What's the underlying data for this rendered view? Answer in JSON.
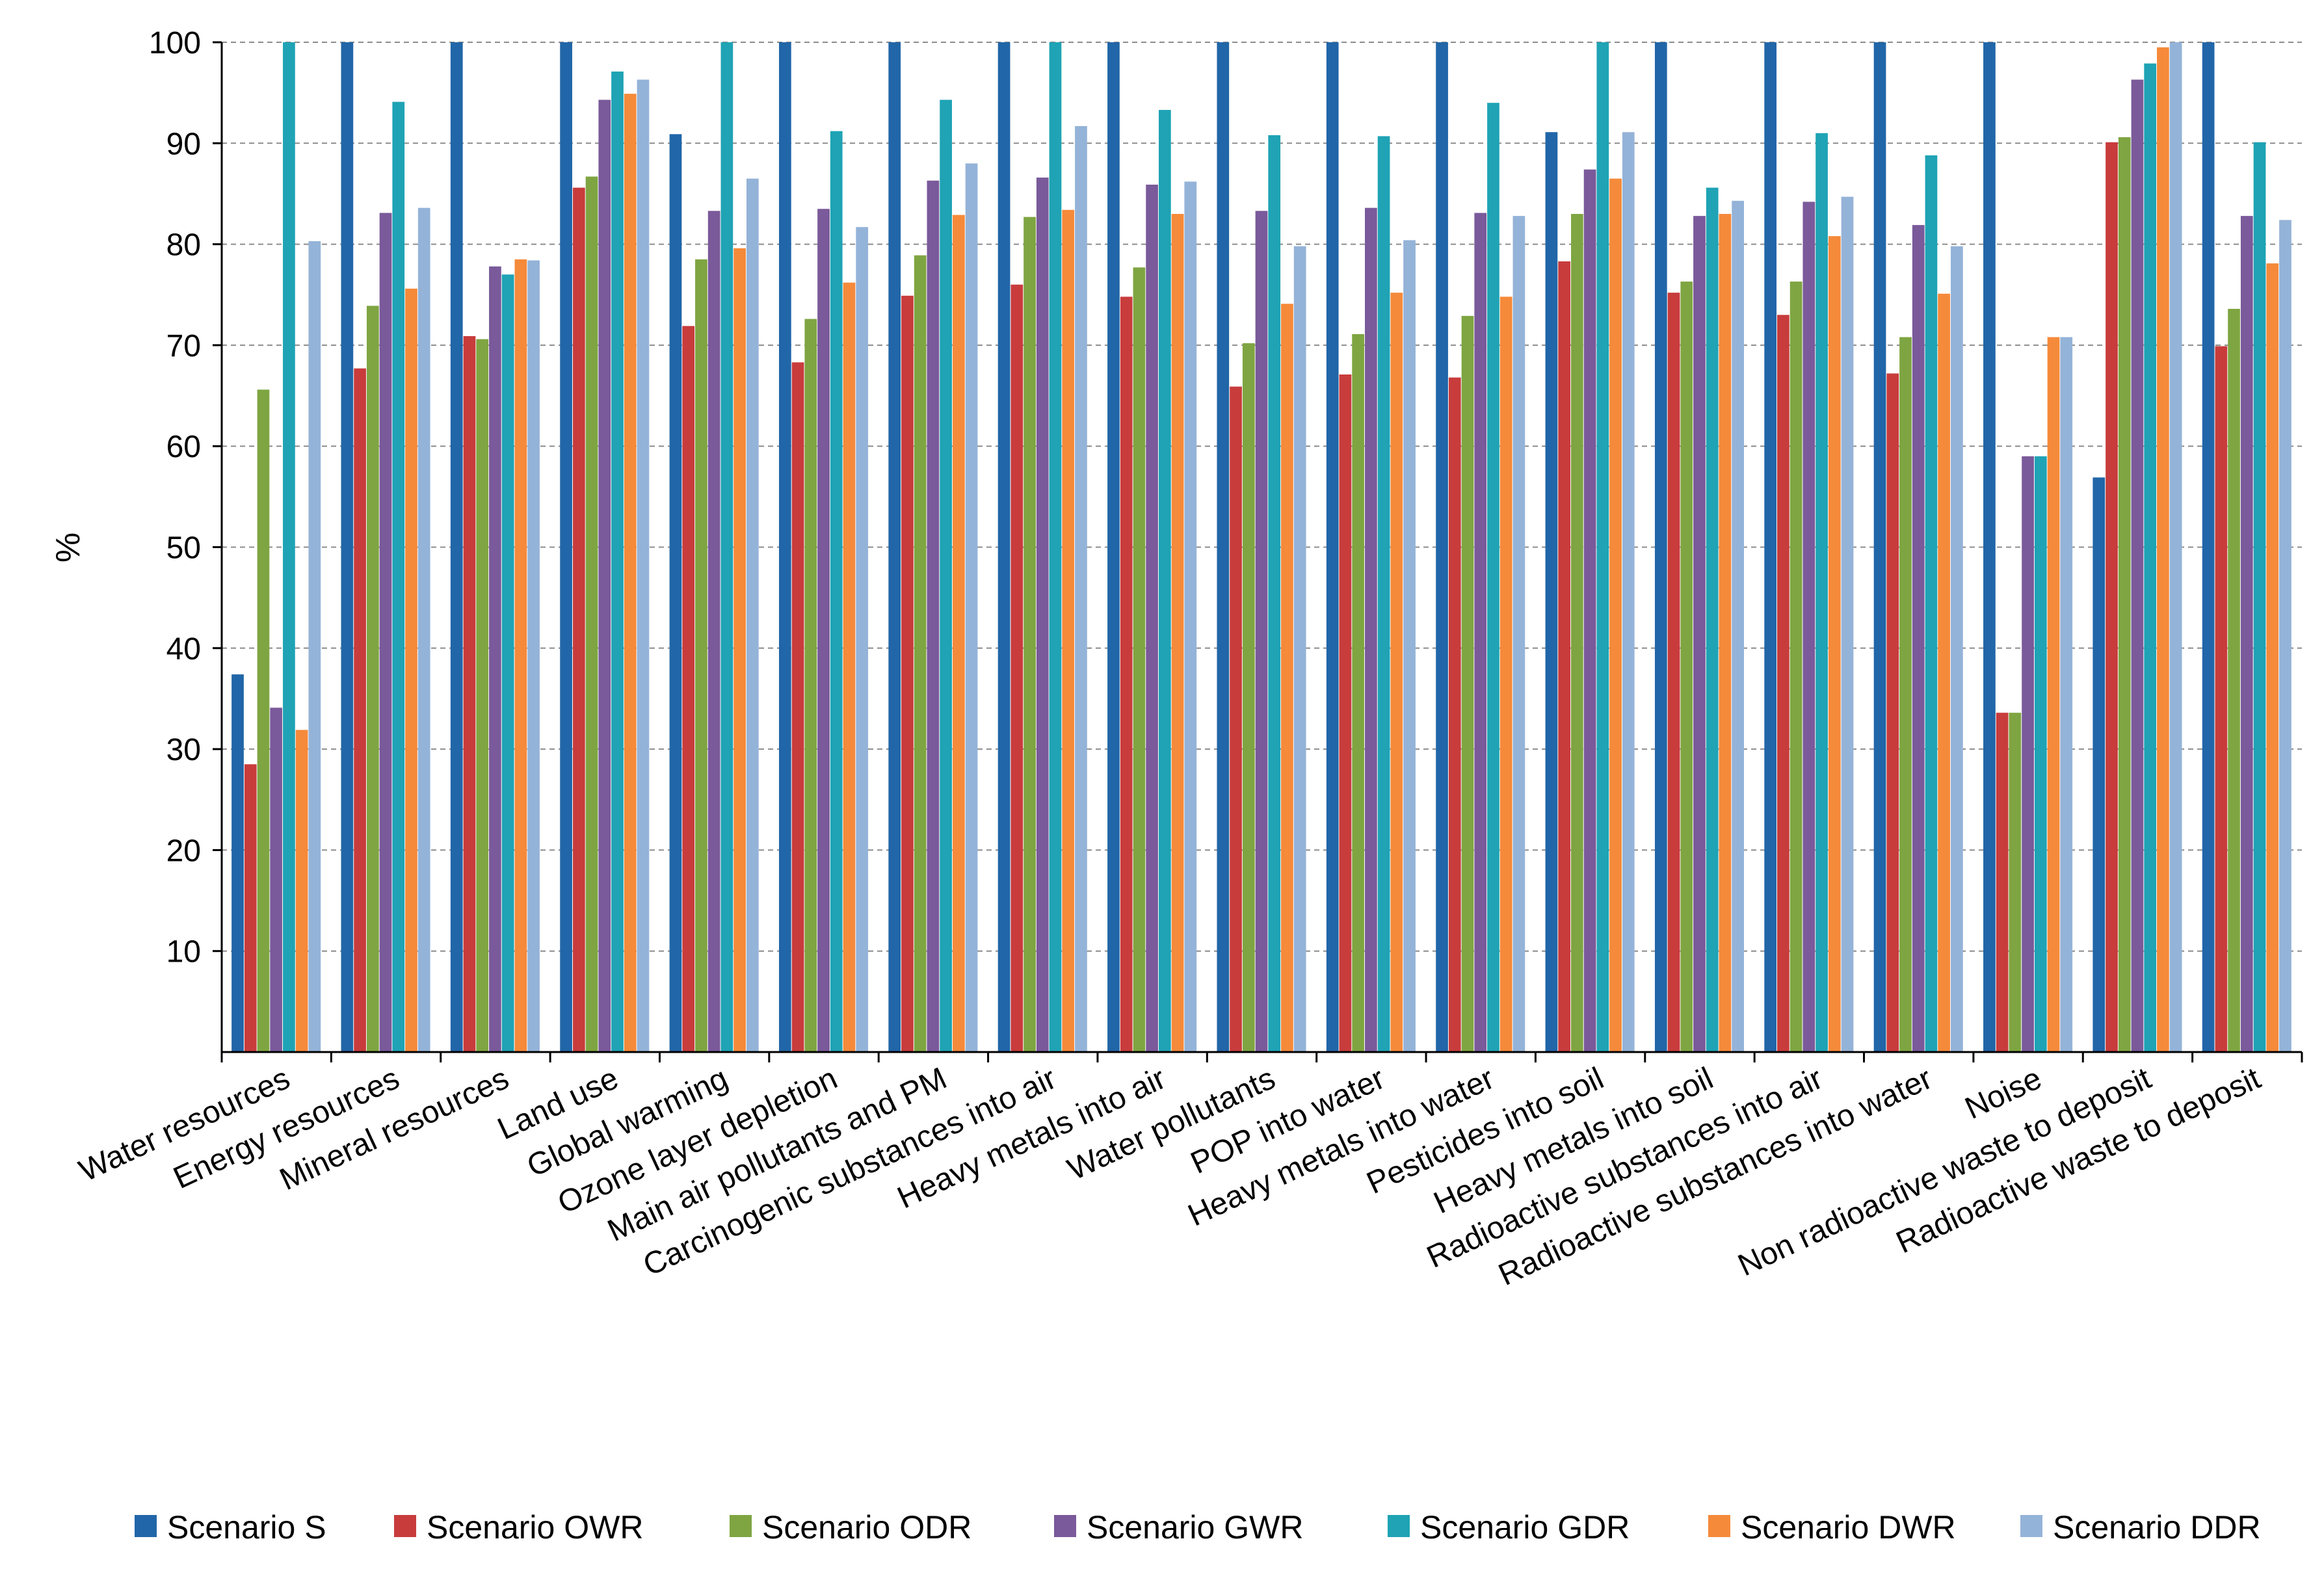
{
  "chart_data": {
    "type": "bar",
    "title": "",
    "xlabel": "",
    "ylabel": "%",
    "ylim": [
      0,
      100
    ],
    "yticks": [
      10,
      20,
      30,
      40,
      50,
      60,
      70,
      80,
      90,
      100
    ],
    "grid": true,
    "legend_position": "bottom",
    "categories": [
      "Water resources",
      "Energy resources",
      "Mineral resources",
      "Land use",
      "Global warming",
      "Ozone layer depletion",
      "Main air pollutants and PM",
      "Carcinogenic substances into air",
      "Heavy metals into air",
      "Water pollutants",
      "POP into water",
      "Heavy metals into water",
      "Pesticides into soil",
      "Heavy metals into soil",
      "Radioactive substances into air",
      "Radioactive substances into water",
      "Noise",
      "Non radioactive waste to deposit",
      "Radioactive waste to deposit"
    ],
    "series": [
      {
        "name": "Scenario S",
        "color": "#2166a8",
        "values": [
          37.4,
          100,
          100,
          100,
          90.9,
          100,
          100,
          100,
          100,
          100,
          100,
          100,
          91.1,
          100,
          100,
          100,
          100,
          56.9,
          100
        ]
      },
      {
        "name": "Scenario OWR",
        "color": "#c83c3c",
        "values": [
          28.5,
          67.7,
          70.9,
          85.6,
          71.9,
          68.3,
          74.9,
          76.0,
          74.8,
          65.9,
          67.1,
          66.8,
          78.3,
          75.2,
          73.0,
          67.2,
          33.6,
          90.1,
          69.9
        ]
      },
      {
        "name": "Scenario ODR",
        "color": "#7fa542",
        "values": [
          65.6,
          73.9,
          70.6,
          86.7,
          78.5,
          72.6,
          78.9,
          82.7,
          77.7,
          70.2,
          71.1,
          72.9,
          83.0,
          76.3,
          76.3,
          70.8,
          33.6,
          90.6,
          73.6
        ]
      },
      {
        "name": "Scenario GWR",
        "color": "#7a5a9a",
        "values": [
          34.1,
          83.1,
          77.8,
          94.3,
          83.3,
          83.5,
          86.3,
          86.6,
          85.9,
          83.3,
          83.6,
          83.1,
          87.4,
          82.8,
          84.2,
          81.9,
          59.0,
          96.3,
          82.8
        ]
      },
      {
        "name": "Scenario GDR",
        "color": "#1fa3b5",
        "values": [
          100,
          94.1,
          77.0,
          97.1,
          100,
          91.2,
          94.3,
          100,
          93.3,
          90.8,
          90.7,
          94.0,
          100,
          85.6,
          91.0,
          88.8,
          59.0,
          97.9,
          90.1
        ]
      },
      {
        "name": "Scenario DWR",
        "color": "#f58a3a",
        "values": [
          31.9,
          75.6,
          78.5,
          94.9,
          79.6,
          76.2,
          82.9,
          83.4,
          83.0,
          74.1,
          75.2,
          74.8,
          86.5,
          83.0,
          80.8,
          75.1,
          70.8,
          99.5,
          78.1
        ]
      },
      {
        "name": "Scenario DDR",
        "color": "#94b3d8",
        "values": [
          80.3,
          83.6,
          78.4,
          96.3,
          86.5,
          81.7,
          88.0,
          91.7,
          86.2,
          79.8,
          80.4,
          82.8,
          91.1,
          84.3,
          84.7,
          79.8,
          70.8,
          100,
          82.4
        ]
      }
    ]
  }
}
